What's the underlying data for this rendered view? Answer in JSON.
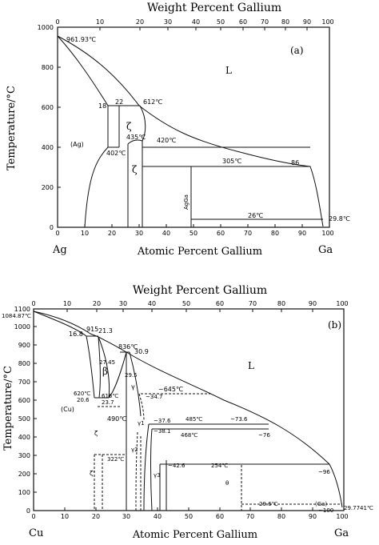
{
  "diagram_a": {
    "top_axis_title": "Weight Percent Gallium",
    "bottom_axis_title": "Atomic Percent Gallium",
    "y_axis_title": "Temperature/°C",
    "panel_label": "(a)",
    "left_element": "Ag",
    "right_element": "Ga",
    "top_ticks": [
      "0",
      "10",
      "20",
      "30",
      "40",
      "50",
      "60",
      "70",
      "80",
      "90",
      "100"
    ],
    "bottom_ticks": [
      "0",
      "10",
      "20",
      "30",
      "40",
      "50",
      "60",
      "70",
      "80",
      "90",
      "100"
    ],
    "y_ticks": [
      "0",
      "200",
      "400",
      "600",
      "800",
      "1000"
    ],
    "phase_L": "L",
    "phase_ag": "(Ag)",
    "phase_zeta": "ζ",
    "phase_zeta2": "ζ",
    "phase_agga": "AgGa",
    "ann_mp": "961.93℃",
    "ann_18": "18",
    "ann_22": "22",
    "ann_612": "612℃",
    "ann_435": "435℃",
    "ann_402": "402℃",
    "ann_420": "420℃",
    "ann_305": "305℃",
    "ann_86": "86",
    "ann_26": "26℃",
    "ann_298": "29.8℃"
  },
  "diagram_b": {
    "top_axis_title": "Weight Percent Gallium",
    "bottom_axis_title": "Atomic Percent Gallium",
    "y_axis_title": "Temperature/°C",
    "panel_label": "(b)",
    "left_element": "Cu",
    "right_element": "Ga",
    "top_ticks": [
      "0",
      "10",
      "20",
      "30",
      "40",
      "50",
      "60",
      "70",
      "80",
      "90",
      "100"
    ],
    "bottom_ticks": [
      "0",
      "10",
      "20",
      "30",
      "40",
      "50",
      "60",
      "70",
      "80",
      "90",
      "100"
    ],
    "y_ticks": [
      "0",
      "100",
      "200",
      "300",
      "400",
      "500",
      "600",
      "700",
      "800",
      "900",
      "1000",
      "1100"
    ],
    "ann_mp": "1084.87℃",
    "phase_L": "L",
    "phase_cu": "(Cu)",
    "phase_beta": "β",
    "phase_gamma": "γ",
    "phase_gamma1": "γ1",
    "phase_gamma2": "γ2",
    "phase_gamma3": "γ3",
    "phase_zeta": "ζ",
    "phase_zetap": "ζ'",
    "phase_theta": "θ",
    "phase_ga": "(Ga)",
    "ann_168": "16.8",
    "ann_915": "915",
    "ann_213": "21.3",
    "ann_836": "836℃",
    "ann_309": "30.9",
    "ann_2745": "27.45",
    "ann_295": "29.5",
    "ann_645": "~645℃",
    "ann_347": "~34.7",
    "ann_620": "620℃",
    "ann_206": "20.6",
    "ann_616": "616℃",
    "ann_237": "23.7",
    "ann_490": "490℃",
    "ann_376": "~37.6",
    "ann_485": "485℃",
    "ann_736": "~73.6",
    "ann_381": "~38.1",
    "ann_468": "468℃",
    "ann_76": "~76",
    "ann_322": "322℃",
    "ann_426": "~42.6",
    "ann_254": "254℃",
    "ann_96": "~96",
    "ann_296": "29.6℃",
    "ann_100": "~100",
    "ann_29774": "29.7741℃"
  }
}
